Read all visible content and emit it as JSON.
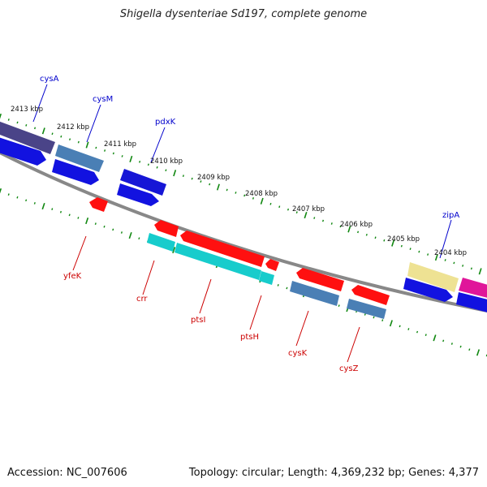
{
  "title": "Shigella dysenteriae Sd197, complete genome",
  "footer": {
    "accession": "Accession: NC_007606",
    "summary": "Topology: circular; Length: 4,369,232 bp; Genes: 4,377"
  },
  "colors": {
    "backbone": "#808080",
    "ticks": "#007700",
    "forward_label": "#0000cc",
    "reverse_label": "#cc0000"
  },
  "kbp_ticks": [
    "2413 kbp",
    "2412 kbp",
    "2411 kbp",
    "2410 kbp",
    "2409 kbp",
    "2408 kbp",
    "2407 kbp",
    "2406 kbp",
    "2405 kbp",
    "2404 kbp"
  ],
  "gene_labels": {
    "forward": [
      "cysA",
      "cysM",
      "pdxK",
      "zipA"
    ],
    "reverse": [
      "yfeK",
      "crr",
      "ptsI",
      "ptsH",
      "cysK",
      "cysZ"
    ]
  }
}
